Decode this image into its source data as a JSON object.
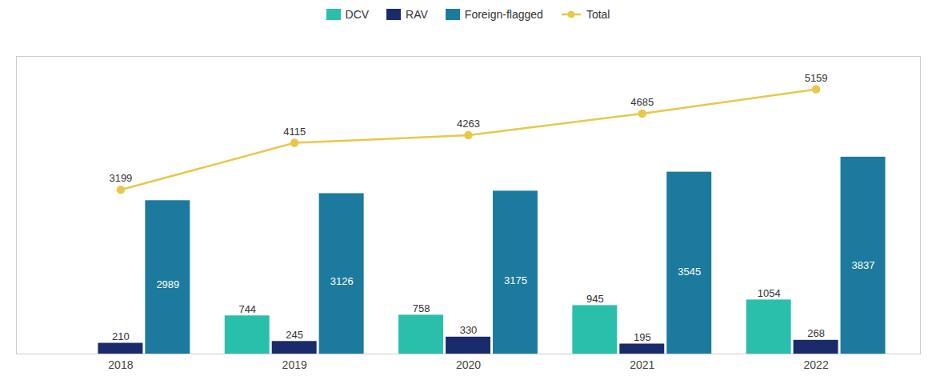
{
  "chart_data": {
    "type": "bar",
    "categories": [
      "2018",
      "2019",
      "2020",
      "2021",
      "2022"
    ],
    "series": [
      {
        "name": "DCV",
        "color": "#2abfaa",
        "values": [
          0,
          744,
          758,
          945,
          1054
        ],
        "value_labels": [
          null,
          "744",
          "758",
          "945",
          "1054"
        ]
      },
      {
        "name": "RAV",
        "color": "#1a2b6b",
        "values": [
          210,
          245,
          330,
          195,
          268
        ]
      },
      {
        "name": "Foreign-flagged",
        "color": "#1b7a9e",
        "values": [
          2989,
          3126,
          3175,
          3545,
          3837
        ]
      },
      {
        "name": "Total",
        "type": "line",
        "marker": "circle",
        "color": "#e8c84a",
        "values": [
          3199,
          4115,
          4263,
          4685,
          5159
        ]
      }
    ],
    "ylim": [
      0,
      5800
    ],
    "data_labels": true,
    "tick_labels": "x",
    "legend": "top",
    "grid": false
  }
}
